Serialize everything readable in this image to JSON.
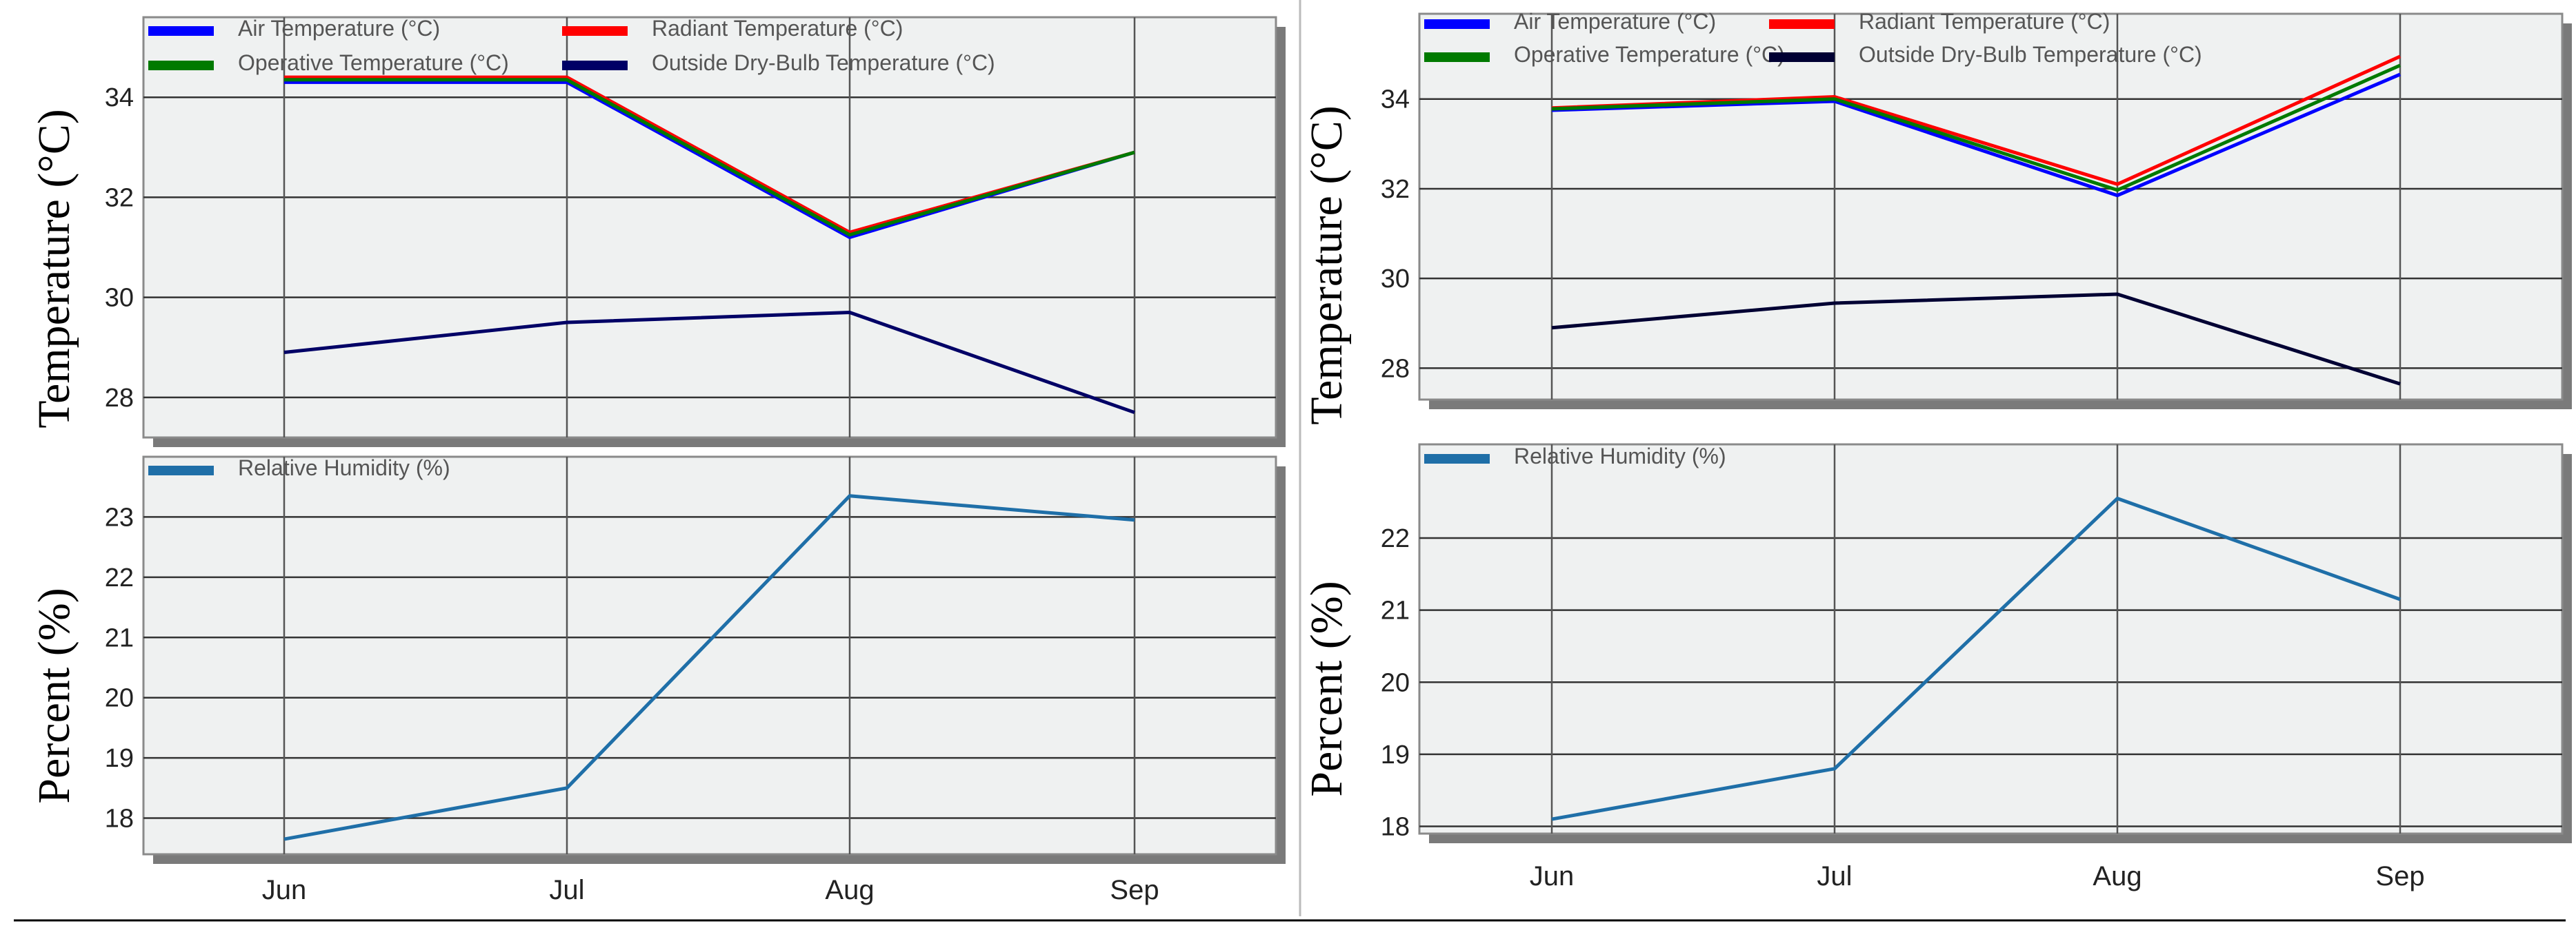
{
  "chart_data": [
    {
      "id": "left-temperature",
      "type": "line",
      "title": "",
      "xlabel": "",
      "ylabel": "Temperature (°C)",
      "categories": [
        "Jun",
        "Jul",
        "Aug",
        "Sep"
      ],
      "ylim": [
        27.2,
        35.6
      ],
      "yticks": [
        28,
        30,
        32,
        34
      ],
      "grid": true,
      "legend_position": "top-left",
      "series": [
        {
          "name": "Air Temperature (°C)",
          "color": "#0000ff",
          "values": [
            34.3,
            34.3,
            31.2,
            32.9
          ]
        },
        {
          "name": "Radiant Temperature (°C)",
          "color": "#ff0000",
          "values": [
            34.4,
            34.4,
            31.3,
            32.9
          ]
        },
        {
          "name": "Operative Temperature (°C)",
          "color": "#007a00",
          "values": [
            34.35,
            34.35,
            31.25,
            32.9
          ]
        },
        {
          "name": "Outside Dry-Bulb Temperature (°C)",
          "color": "#000066",
          "values": [
            28.9,
            29.5,
            29.7,
            27.7
          ]
        }
      ]
    },
    {
      "id": "left-humidity",
      "type": "line",
      "title": "",
      "xlabel": "",
      "ylabel": "Percent (%)",
      "categories": [
        "Jun",
        "Jul",
        "Aug",
        "Sep"
      ],
      "ylim": [
        17.4,
        24.0
      ],
      "yticks": [
        18,
        19,
        20,
        21,
        22,
        23
      ],
      "grid": true,
      "legend_position": "top-left",
      "series": [
        {
          "name": "Relative Humidity (%)",
          "color": "#1f6fa8",
          "values": [
            17.65,
            18.5,
            23.35,
            22.95
          ]
        }
      ]
    },
    {
      "id": "right-temperature",
      "type": "line",
      "title": "",
      "xlabel": "",
      "ylabel": "Temperature (°C)",
      "categories": [
        "Jun",
        "Jul",
        "Aug",
        "Sep"
      ],
      "ylim": [
        27.3,
        35.9
      ],
      "yticks": [
        28,
        30,
        32,
        34
      ],
      "grid": true,
      "legend_position": "top-left",
      "series": [
        {
          "name": "Air Temperature (°C)",
          "color": "#0000ff",
          "values": [
            33.75,
            33.95,
            31.85,
            34.55
          ]
        },
        {
          "name": "Radiant Temperature (°C)",
          "color": "#ff0000",
          "values": [
            33.8,
            34.05,
            32.1,
            34.95
          ]
        },
        {
          "name": "Operative Temperature (°C)",
          "color": "#007a00",
          "values": [
            33.78,
            34.0,
            31.97,
            34.75
          ]
        },
        {
          "name": "Outside Dry-Bulb Temperature (°C)",
          "color": "#000033",
          "values": [
            28.9,
            29.45,
            29.65,
            27.65
          ]
        }
      ]
    },
    {
      "id": "right-humidity",
      "type": "line",
      "title": "",
      "xlabel": "",
      "ylabel": "Percent (%)",
      "categories": [
        "Jun",
        "Jul",
        "Aug",
        "Sep"
      ],
      "ylim": [
        17.9,
        23.3
      ],
      "yticks": [
        18,
        19,
        20,
        21,
        22
      ],
      "grid": true,
      "legend_position": "top-left",
      "series": [
        {
          "name": "Relative Humidity (%)",
          "color": "#1f6fa8",
          "values": [
            18.1,
            18.8,
            22.55,
            21.15
          ]
        }
      ]
    }
  ]
}
